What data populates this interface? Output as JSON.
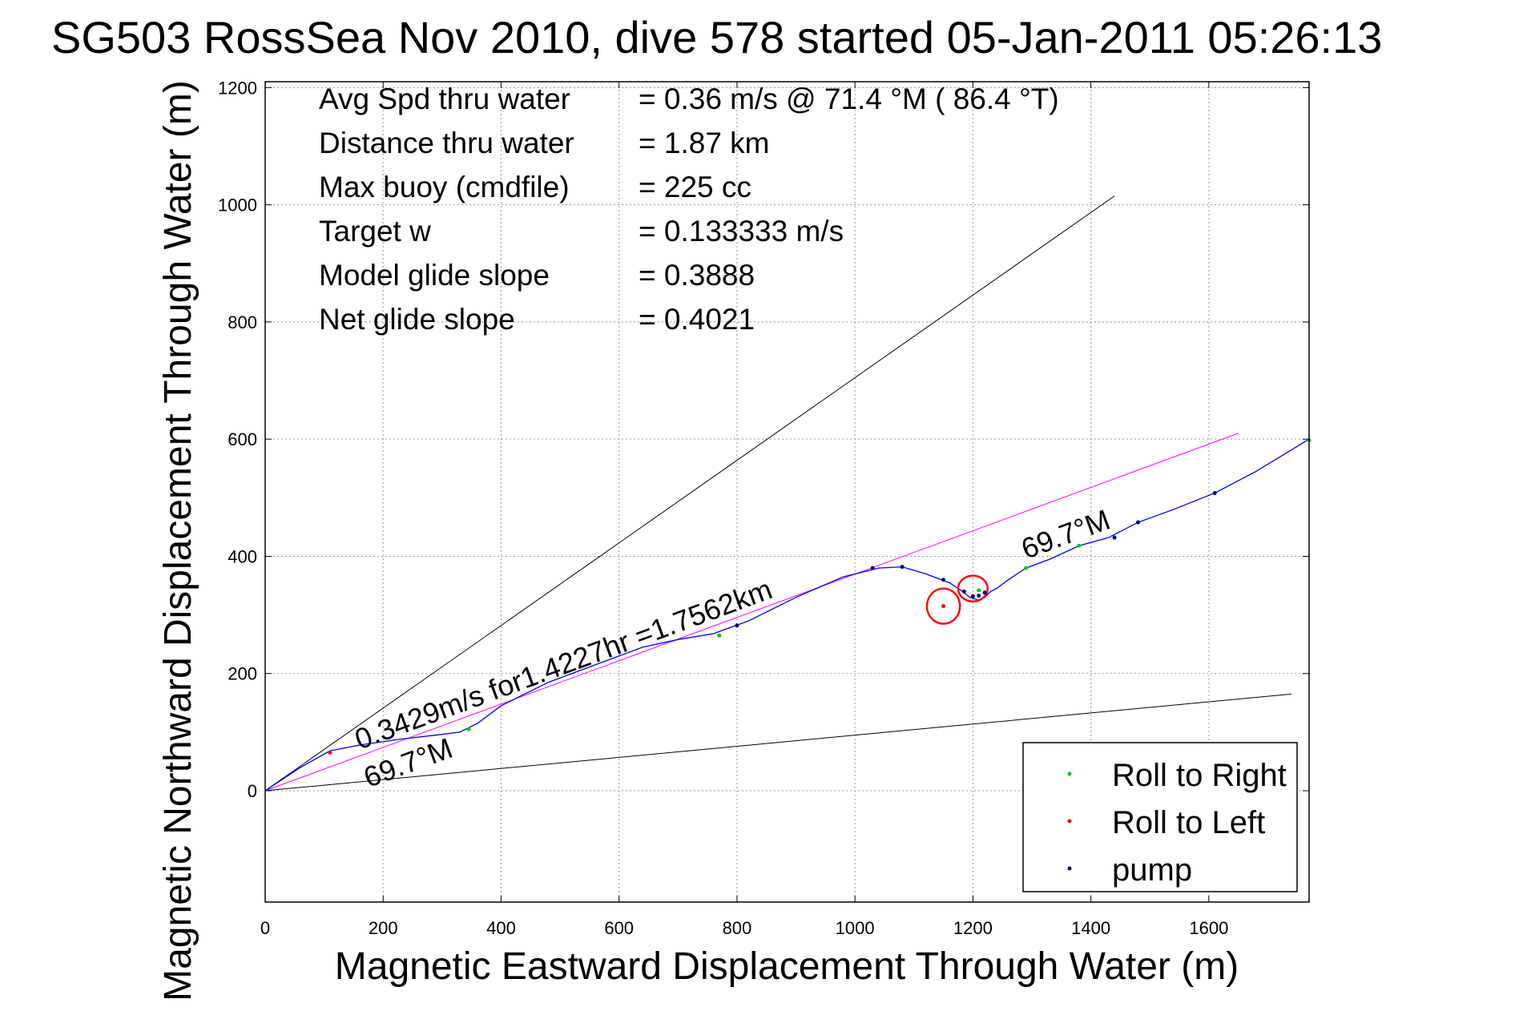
{
  "chart_data": {
    "type": "line",
    "title": "SG503 RossSea Nov 2010, dive 578 started 05-Jan-2011 05:26:13",
    "xlabel": "Magnetic Eastward Displacement Through Water (m)",
    "ylabel": "Magnetic Northward Displacement Through Water (m)",
    "xlim": [
      0,
      1770
    ],
    "ylim": [
      -190,
      1210
    ],
    "xticks": [
      0,
      200,
      400,
      600,
      800,
      1000,
      1200,
      1400,
      1600
    ],
    "yticks": [
      0,
      200,
      400,
      600,
      800,
      1000,
      1200
    ],
    "grid": true,
    "info": [
      {
        "label": "Avg Spd thru water",
        "value": "=  0.36 m/s @  71.4 °M ( 86.4 °T)"
      },
      {
        "label": "Distance thru water",
        "value": "=  1.87 km"
      },
      {
        "label": "Max buoy (cmdfile)",
        "value": "= 225 cc"
      },
      {
        "label": "Target w",
        "value": "= 0.133333 m/s"
      },
      {
        "label": "Model glide slope",
        "value": "= 0.3888"
      },
      {
        "label": "Net glide slope",
        "value": "= 0.4021"
      }
    ],
    "annotations": [
      {
        "text": "0.3429m/s for1.4227hr =1.7562km",
        "x": 160,
        "y": 70,
        "angle": -20.2
      },
      {
        "text": "69.7°M",
        "x": 175,
        "y": 5,
        "angle": -20.2
      },
      {
        "text": "69.7°M",
        "x": 1290,
        "y": 395,
        "angle": -20.2
      }
    ],
    "legend": {
      "placement": "bottom-right",
      "entries": [
        {
          "name": "Roll to Right",
          "color": "#00cc00"
        },
        {
          "name": "Roll to Left",
          "color": "#ff0000"
        },
        {
          "name": "pump",
          "color": "#000080"
        }
      ]
    },
    "reference_lines": [
      {
        "x": [
          0,
          1440
        ],
        "y": [
          0,
          1015
        ],
        "color": "#000000"
      },
      {
        "x": [
          0,
          1740
        ],
        "y": [
          0,
          165
        ],
        "color": "#000000"
      },
      {
        "x": [
          0,
          1650
        ],
        "y": [
          0,
          610
        ],
        "color": "#ff00ff"
      }
    ],
    "track": {
      "name": "track",
      "color": "#0000ff",
      "x": [
        0,
        60,
        110,
        160,
        230,
        290,
        330,
        360,
        400,
        480,
        560,
        640,
        700,
        760,
        820,
        900,
        980,
        1040,
        1080,
        1120,
        1160,
        1180,
        1195,
        1210,
        1220,
        1230,
        1240,
        1260,
        1290,
        1330,
        1380,
        1430,
        1480,
        1540,
        1610,
        1680,
        1770
      ],
      "y": [
        0,
        40,
        68,
        78,
        88,
        95,
        100,
        115,
        145,
        185,
        215,
        245,
        258,
        268,
        290,
        330,
        365,
        380,
        382,
        370,
        355,
        342,
        330,
        325,
        330,
        340,
        345,
        360,
        380,
        395,
        418,
        432,
        458,
        480,
        508,
        545,
        600
      ]
    },
    "loop": {
      "cx": 1200,
      "cy": 345,
      "rx": 25,
      "ry": 22,
      "cx2": 1150,
      "cy2": 315,
      "rx2": 28,
      "ry2": 30
    },
    "markers": {
      "roll_right": {
        "x": [
          345,
          770,
          1210,
          1290,
          1380,
          1770
        ],
        "y": [
          105,
          265,
          342,
          380,
          418,
          598
        ]
      },
      "roll_left": {
        "x": [
          110,
          1150
        ],
        "y": [
          65,
          315
        ]
      },
      "pump": {
        "x": [
          800,
          1030,
          1080,
          1150,
          1185,
          1200,
          1210,
          1220,
          1440,
          1480,
          1610
        ],
        "y": [
          282,
          380,
          382,
          360,
          340,
          332,
          333,
          338,
          432,
          458,
          508
        ]
      }
    }
  }
}
